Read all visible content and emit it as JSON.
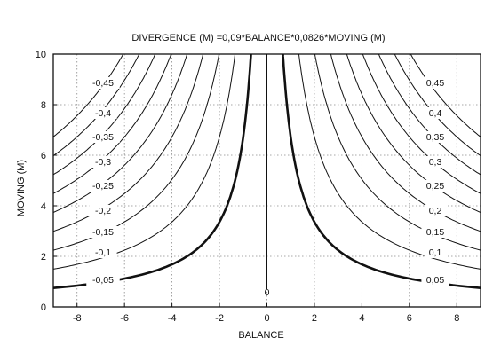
{
  "chart_data": {
    "type": "contour",
    "title": "DIVERGENCE (M) =0,09*BALANCE*0,0826*MOVING (M)",
    "xlabel": "BALANCE",
    "ylabel": "MOVING  (M)",
    "xlim": [
      -9,
      9
    ],
    "ylim": [
      0,
      10
    ],
    "x_ticks": [
      "-8",
      "-6",
      "-4",
      "-2",
      "0",
      "2",
      "4",
      "6",
      "8"
    ],
    "x_tick_values": [
      -8,
      -6,
      -4,
      -2,
      0,
      2,
      4,
      6,
      8
    ],
    "y_ticks": [
      "0",
      "2",
      "4",
      "6",
      "8",
      "10"
    ],
    "y_tick_values": [
      0,
      2,
      4,
      6,
      8,
      10
    ],
    "grid": true,
    "zero_label": "0",
    "levels": [
      {
        "value": 0.05,
        "label": "0,05",
        "bold": true
      },
      {
        "value": 0.1,
        "label": "0,1",
        "bold": false
      },
      {
        "value": 0.15,
        "label": "0,15",
        "bold": false
      },
      {
        "value": 0.2,
        "label": "0,2",
        "bold": false
      },
      {
        "value": 0.25,
        "label": "0,25",
        "bold": false
      },
      {
        "value": 0.3,
        "label": "0,3",
        "bold": false
      },
      {
        "value": 0.35,
        "label": "0,35",
        "bold": false
      },
      {
        "value": 0.4,
        "label": "0,4",
        "bold": false
      },
      {
        "value": 0.45,
        "label": "0,45",
        "bold": false
      },
      {
        "value": -0.05,
        "label": "-0,05",
        "bold": true
      },
      {
        "value": -0.1,
        "label": "-0,1",
        "bold": false
      },
      {
        "value": -0.15,
        "label": "-0,15",
        "bold": false
      },
      {
        "value": -0.2,
        "label": "-0,2",
        "bold": false
      },
      {
        "value": -0.25,
        "label": "-0,25",
        "bold": false
      },
      {
        "value": -0.3,
        "label": "-0,3",
        "bold": false
      },
      {
        "value": -0.35,
        "label": "-0,35",
        "bold": false
      },
      {
        "value": -0.4,
        "label": "-0,4",
        "bold": false
      },
      {
        "value": -0.45,
        "label": "-0,45",
        "bold": false
      }
    ],
    "colors": {
      "line": "#111111",
      "grid": "#8a8a8a",
      "background": "#ffffff"
    }
  }
}
